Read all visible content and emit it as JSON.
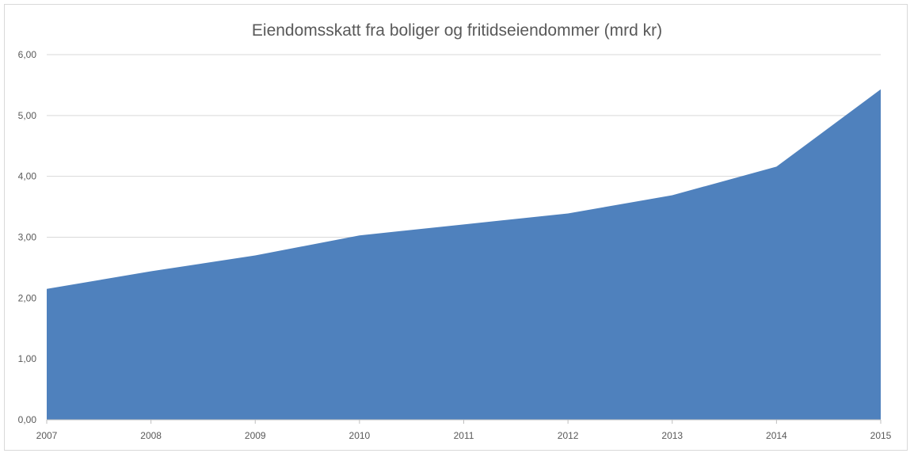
{
  "chart_data": {
    "type": "area",
    "title": "Eiendomsskatt fra boliger og fritidseiendommer (mrd kr)",
    "xlabel": "",
    "ylabel": "",
    "categories": [
      "2007",
      "2008",
      "2009",
      "2010",
      "2011",
      "2012",
      "2013",
      "2014",
      "2015"
    ],
    "series": [
      {
        "values": [
          2.15,
          2.44,
          2.7,
          3.03,
          3.21,
          3.39,
          3.69,
          4.16,
          5.43
        ],
        "color": "#4f81bd"
      }
    ],
    "ylim": [
      0,
      6
    ],
    "y_ticks": [
      "0,00",
      "1,00",
      "2,00",
      "3,00",
      "4,00",
      "5,00",
      "6,00"
    ],
    "grid": true,
    "legend": "none"
  }
}
